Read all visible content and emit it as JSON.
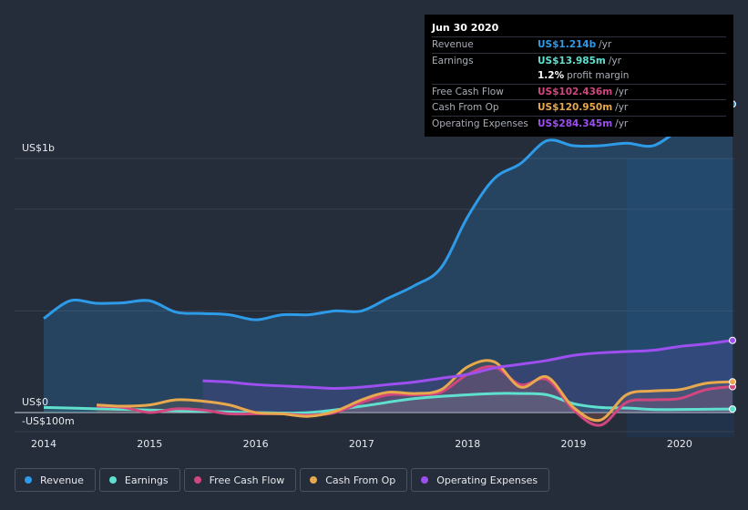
{
  "tooltip": {
    "date": "Jun 30 2020",
    "rows": [
      {
        "label": "Revenue",
        "value": "US$1.214b",
        "unit": "/yr",
        "color": "#2e9be8"
      },
      {
        "label": "Earnings",
        "value": "US$13.985m",
        "unit": "/yr",
        "color": "#5fe0cf"
      },
      {
        "label": "",
        "value": "1.2%",
        "unit": "profit margin",
        "color": "#ffffff"
      },
      {
        "label": "Free Cash Flow",
        "value": "US$102.436m",
        "unit": "/yr",
        "color": "#d1467f"
      },
      {
        "label": "Cash From Op",
        "value": "US$120.950m",
        "unit": "/yr",
        "color": "#e8a84d"
      },
      {
        "label": "Operating Expenses",
        "value": "US$284.345m",
        "unit": "/yr",
        "color": "#9d4ff0"
      }
    ]
  },
  "chart_data": {
    "type": "line",
    "y_unit_labels": {
      "top": "US$1b",
      "zero": "US$0",
      "bottom": "-US$100m"
    },
    "xlim": [
      2014.0,
      2020.5
    ],
    "ylim": [
      -100,
      1300
    ],
    "x_ticks": [
      "2014",
      "2015",
      "2016",
      "2017",
      "2018",
      "2019",
      "2020"
    ],
    "forecast_shade_from": 2019.5,
    "series": [
      {
        "name": "Revenue",
        "color": "#2e9be8",
        "fill": true,
        "x": [
          2014.0,
          2014.25,
          2014.5,
          2014.75,
          2015.0,
          2015.25,
          2015.5,
          2015.75,
          2016.0,
          2016.25,
          2016.5,
          2016.75,
          2017.0,
          2017.25,
          2017.5,
          2017.75,
          2018.0,
          2018.25,
          2018.5,
          2018.75,
          2019.0,
          2019.25,
          2019.5,
          2019.75,
          2020.0,
          2020.25,
          2020.5
        ],
        "y": [
          370,
          440,
          430,
          432,
          440,
          395,
          390,
          385,
          365,
          385,
          385,
          400,
          400,
          450,
          500,
          570,
          770,
          920,
          980,
          1070,
          1050,
          1050,
          1060,
          1050,
          1110,
          1130,
          1214
        ]
      },
      {
        "name": "Earnings",
        "color": "#5fe0cf",
        "fill": false,
        "x": [
          2014.0,
          2014.5,
          2015.0,
          2015.5,
          2016.0,
          2016.5,
          2017.0,
          2017.5,
          2018.0,
          2018.25,
          2018.5,
          2018.75,
          2019.0,
          2019.25,
          2019.5,
          2019.75,
          2020.0,
          2020.25,
          2020.5
        ],
        "y": [
          20,
          15,
          10,
          5,
          0,
          0,
          25,
          55,
          70,
          75,
          75,
          70,
          35,
          20,
          18,
          12,
          12,
          13,
          14
        ]
      },
      {
        "name": "Free Cash Flow",
        "color": "#d1467f",
        "fill": false,
        "x": [
          2014.5,
          2014.75,
          2015.0,
          2015.25,
          2015.5,
          2015.75,
          2016.0,
          2016.25,
          2016.5,
          2016.75,
          2017.0,
          2017.25,
          2017.5,
          2017.75,
          2018.0,
          2018.25,
          2018.5,
          2018.75,
          2019.0,
          2019.25,
          2019.5,
          2019.75,
          2020.0,
          2020.25,
          2020.5
        ],
        "y": [
          25,
          20,
          0,
          15,
          10,
          -5,
          -5,
          -5,
          -10,
          0,
          40,
          70,
          70,
          80,
          150,
          180,
          110,
          130,
          10,
          -50,
          40,
          50,
          55,
          90,
          102
        ]
      },
      {
        "name": "Cash From Op",
        "color": "#e8a84d",
        "fill": false,
        "x": [
          2014.5,
          2014.75,
          2015.0,
          2015.25,
          2015.5,
          2015.75,
          2016.0,
          2016.25,
          2016.5,
          2016.75,
          2017.0,
          2017.25,
          2017.5,
          2017.75,
          2018.0,
          2018.25,
          2018.5,
          2018.75,
          2019.0,
          2019.25,
          2019.5,
          2019.75,
          2020.0,
          2020.25,
          2020.5
        ],
        "y": [
          30,
          25,
          30,
          50,
          45,
          30,
          0,
          -5,
          -15,
          5,
          50,
          80,
          75,
          90,
          180,
          200,
          100,
          140,
          20,
          -30,
          70,
          85,
          90,
          115,
          121
        ]
      },
      {
        "name": "Operating Expenses",
        "color": "#9d4ff0",
        "fill": false,
        "x": [
          2015.5,
          2015.75,
          2016.0,
          2016.5,
          2016.75,
          2017.0,
          2017.25,
          2017.5,
          2017.75,
          2018.0,
          2018.25,
          2018.5,
          2018.75,
          2019.0,
          2019.25,
          2019.5,
          2019.75,
          2020.0,
          2020.25,
          2020.5
        ],
        "y": [
          125,
          120,
          110,
          100,
          95,
          100,
          110,
          120,
          135,
          150,
          175,
          190,
          205,
          225,
          235,
          240,
          245,
          260,
          270,
          284
        ]
      }
    ]
  },
  "legend": [
    {
      "label": "Revenue",
      "color": "#2e9be8"
    },
    {
      "label": "Earnings",
      "color": "#5fe0cf"
    },
    {
      "label": "Free Cash Flow",
      "color": "#d1467f"
    },
    {
      "label": "Cash From Op",
      "color": "#e8a84d"
    },
    {
      "label": "Operating Expenses",
      "color": "#9d4ff0"
    }
  ]
}
